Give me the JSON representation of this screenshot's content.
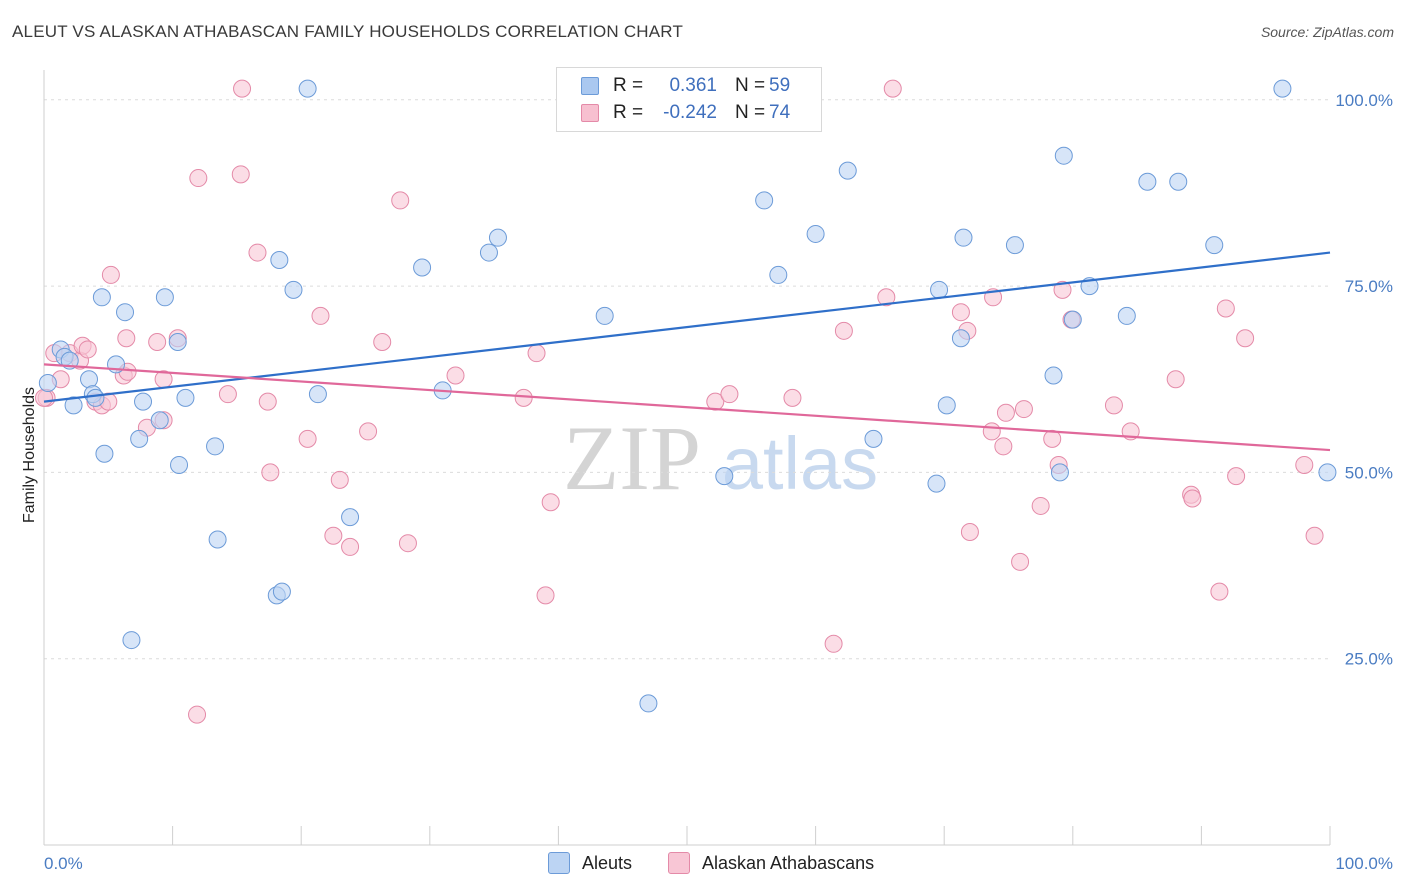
{
  "title": "ALEUT VS ALASKAN ATHABASCAN FAMILY HOUSEHOLDS CORRELATION CHART",
  "source": "Source: ZipAtlas.com",
  "watermark": {
    "zip": "ZIP",
    "atlas": "atlas"
  },
  "legend": {
    "rows": [
      {
        "r_label": "R =",
        "r_value": "0.361",
        "n_label": "N =",
        "n_value": "59",
        "color": "#aac8f0",
        "border": "#6c9bd8"
      },
      {
        "r_label": "R =",
        "r_value": "-0.242",
        "n_label": "N =",
        "n_value": "74",
        "color": "#f7c0d0",
        "border": "#e48aa8"
      }
    ]
  },
  "bottom_legend": {
    "aleuts": "Aleuts",
    "athabascans": "Alaskan Athabascans"
  },
  "chart_data": {
    "type": "scatter",
    "ylabel": "Family Households",
    "xlim": [
      0,
      100
    ],
    "ylim": [
      0,
      104
    ],
    "y_ticks": [
      "25.0%",
      "50.0%",
      "75.0%",
      "100.0%"
    ],
    "y_tick_values": [
      25,
      50,
      75,
      100
    ],
    "x_tick_labels": [
      "0.0%",
      "100.0%"
    ],
    "colors": {
      "aleuts": "#6c9bd8",
      "aleuts_fill": "#bcd4f3",
      "athabascans": "#e48aa8",
      "athabascans_fill": "#f8c6d5",
      "aleuts_line": "#2f6fc9",
      "athabascans_line": "#e0689a"
    },
    "series": [
      {
        "name": "Aleuts",
        "trend": [
          [
            0,
            59.5
          ],
          [
            100,
            79.5
          ]
        ],
        "points": [
          [
            0.3,
            62
          ],
          [
            1.3,
            66.5
          ],
          [
            1.6,
            65.5
          ],
          [
            2,
            65
          ],
          [
            2.3,
            59
          ],
          [
            3.5,
            62.5
          ],
          [
            3.8,
            60.5
          ],
          [
            4,
            60
          ],
          [
            4.7,
            52.5
          ],
          [
            4.5,
            73.5
          ],
          [
            5.6,
            64.5
          ],
          [
            6.3,
            71.5
          ],
          [
            7.4,
            54.5
          ],
          [
            7.7,
            59.5
          ],
          [
            9,
            57
          ],
          [
            9.4,
            73.5
          ],
          [
            10.4,
            67.5
          ],
          [
            10.5,
            51
          ],
          [
            11,
            60
          ],
          [
            13.3,
            53.5
          ],
          [
            13.5,
            41
          ],
          [
            18.1,
            33.5
          ],
          [
            18.5,
            34
          ],
          [
            6.8,
            27.5
          ],
          [
            18.3,
            78.5
          ],
          [
            19.4,
            74.5
          ],
          [
            20.5,
            101.5
          ],
          [
            21.3,
            60.5
          ],
          [
            23.8,
            44
          ],
          [
            29.4,
            77.5
          ],
          [
            31,
            61
          ],
          [
            34.6,
            79.5
          ],
          [
            35.3,
            81.5
          ],
          [
            43.6,
            71
          ],
          [
            47,
            19
          ],
          [
            52.9,
            49.5
          ],
          [
            54.3,
            101.5
          ],
          [
            56,
            86.5
          ],
          [
            57.1,
            76.5
          ],
          [
            60,
            82
          ],
          [
            62.5,
            90.5
          ],
          [
            64.5,
            54.5
          ],
          [
            69.4,
            48.5
          ],
          [
            69.6,
            74.5
          ],
          [
            70.2,
            59
          ],
          [
            71.3,
            68
          ],
          [
            71.5,
            81.5
          ],
          [
            75.5,
            80.5
          ],
          [
            78.5,
            63
          ],
          [
            79,
            50
          ],
          [
            79.3,
            92.5
          ],
          [
            80,
            70.5
          ],
          [
            81.3,
            75
          ],
          [
            84.2,
            71
          ],
          [
            85.8,
            89
          ],
          [
            88.2,
            89
          ],
          [
            91,
            80.5
          ],
          [
            96.3,
            101.5
          ],
          [
            99.8,
            50
          ]
        ]
      },
      {
        "name": "Alaskan Athabascans",
        "trend": [
          [
            0,
            64.5
          ],
          [
            100,
            53
          ]
        ],
        "points": [
          [
            0.2,
            60
          ],
          [
            0.8,
            66
          ],
          [
            1.3,
            62.5
          ],
          [
            2,
            66
          ],
          [
            2.8,
            65
          ],
          [
            3,
            67
          ],
          [
            3.4,
            66.5
          ],
          [
            4,
            59.5
          ],
          [
            4.5,
            59
          ],
          [
            5,
            59.5
          ],
          [
            5.2,
            76.5
          ],
          [
            6.2,
            63
          ],
          [
            6.4,
            68
          ],
          [
            6.5,
            63.5
          ],
          [
            8,
            56
          ],
          [
            8.8,
            67.5
          ],
          [
            9.3,
            57
          ],
          [
            9.3,
            62.5
          ],
          [
            10.4,
            68
          ],
          [
            11.9,
            17.5
          ],
          [
            12,
            89.5
          ],
          [
            14.3,
            60.5
          ],
          [
            15.4,
            101.5
          ],
          [
            15.3,
            90
          ],
          [
            16.6,
            79.5
          ],
          [
            17.4,
            59.5
          ],
          [
            17.6,
            50
          ],
          [
            20.5,
            54.5
          ],
          [
            21.5,
            71
          ],
          [
            22.5,
            41.5
          ],
          [
            23,
            49
          ],
          [
            23.8,
            40
          ],
          [
            25.2,
            55.5
          ],
          [
            26.3,
            67.5
          ],
          [
            27.7,
            86.5
          ],
          [
            28.3,
            40.5
          ],
          [
            32,
            63
          ],
          [
            37.3,
            60
          ],
          [
            38.3,
            66
          ],
          [
            39.4,
            46
          ],
          [
            39,
            33.5
          ],
          [
            52.2,
            59.5
          ],
          [
            53.3,
            60.5
          ],
          [
            58.2,
            60
          ],
          [
            61.4,
            27
          ],
          [
            62.2,
            69
          ],
          [
            65.5,
            73.5
          ],
          [
            66,
            101.5
          ],
          [
            71.3,
            71.5
          ],
          [
            71.8,
            69
          ],
          [
            72,
            42
          ],
          [
            73.8,
            73.5
          ],
          [
            73.7,
            55.5
          ],
          [
            74.6,
            53.5
          ],
          [
            74.8,
            58
          ],
          [
            75.9,
            38
          ],
          [
            76.2,
            58.5
          ],
          [
            77.5,
            45.5
          ],
          [
            78.4,
            54.5
          ],
          [
            78.9,
            51
          ],
          [
            79.2,
            74.5
          ],
          [
            79.9,
            70.5
          ],
          [
            83.2,
            59
          ],
          [
            84.5,
            55.5
          ],
          [
            88,
            62.5
          ],
          [
            89.2,
            47
          ],
          [
            89.3,
            46.5
          ],
          [
            91.4,
            34
          ],
          [
            91.9,
            72
          ],
          [
            92.7,
            49.5
          ],
          [
            93.4,
            68
          ],
          [
            98,
            51
          ],
          [
            98.8,
            41.5
          ],
          [
            0,
            60
          ]
        ]
      }
    ]
  }
}
